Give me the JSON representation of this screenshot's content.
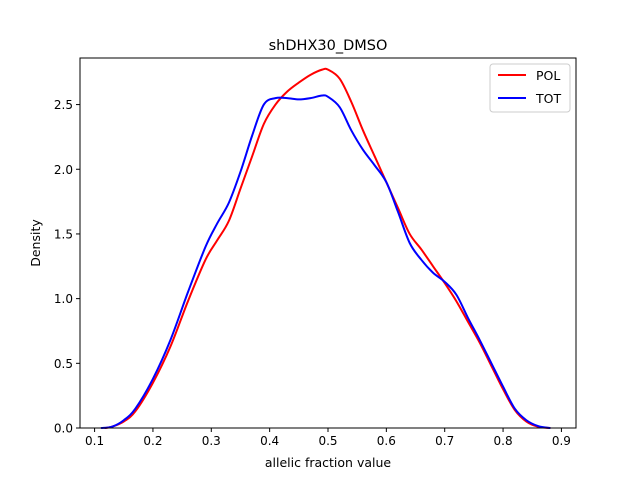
{
  "chart_data": {
    "type": "line",
    "title": "shDHX30_DMSO",
    "xlabel": "allelic fraction value",
    "ylabel": "Density",
    "xlim": [
      0.075,
      0.925
    ],
    "ylim": [
      0.0,
      2.86
    ],
    "xticks": [
      0.1,
      0.2,
      0.3,
      0.4,
      0.5,
      0.6,
      0.7,
      0.8,
      0.9
    ],
    "xtick_labels": [
      "0.1",
      "0.2",
      "0.3",
      "0.4",
      "0.5",
      "0.6",
      "0.7",
      "0.8",
      "0.9"
    ],
    "yticks": [
      0.0,
      0.5,
      1.0,
      1.5,
      2.0,
      2.5
    ],
    "ytick_labels": [
      "0.0",
      "0.5",
      "1.0",
      "1.5",
      "2.0",
      "2.5"
    ],
    "grid": false,
    "legend_position": "top-right",
    "series": [
      {
        "name": "POL",
        "color": "#ff0000",
        "x": [
          0.118,
          0.13,
          0.15,
          0.17,
          0.2,
          0.23,
          0.26,
          0.29,
          0.31,
          0.33,
          0.35,
          0.37,
          0.39,
          0.41,
          0.43,
          0.45,
          0.47,
          0.49,
          0.5,
          0.52,
          0.54,
          0.56,
          0.58,
          0.6,
          0.62,
          0.64,
          0.66,
          0.68,
          0.7,
          0.72,
          0.74,
          0.76,
          0.78,
          0.8,
          0.82,
          0.84,
          0.86,
          0.88
        ],
        "y": [
          0.0,
          0.01,
          0.05,
          0.13,
          0.35,
          0.63,
          0.98,
          1.3,
          1.45,
          1.6,
          1.85,
          2.1,
          2.35,
          2.5,
          2.6,
          2.67,
          2.73,
          2.77,
          2.77,
          2.7,
          2.52,
          2.3,
          2.1,
          1.9,
          1.7,
          1.5,
          1.38,
          1.25,
          1.12,
          0.98,
          0.82,
          0.66,
          0.48,
          0.3,
          0.14,
          0.05,
          0.01,
          0.0
        ]
      },
      {
        "name": "TOT",
        "color": "#0000ff",
        "x": [
          0.112,
          0.13,
          0.15,
          0.17,
          0.2,
          0.23,
          0.26,
          0.29,
          0.31,
          0.33,
          0.35,
          0.37,
          0.39,
          0.41,
          0.43,
          0.45,
          0.47,
          0.49,
          0.5,
          0.52,
          0.54,
          0.56,
          0.58,
          0.6,
          0.62,
          0.64,
          0.66,
          0.68,
          0.7,
          0.72,
          0.74,
          0.76,
          0.78,
          0.8,
          0.82,
          0.84,
          0.86,
          0.88
        ],
        "y": [
          0.0,
          0.01,
          0.06,
          0.15,
          0.38,
          0.68,
          1.05,
          1.4,
          1.58,
          1.74,
          1.98,
          2.26,
          2.5,
          2.55,
          2.55,
          2.54,
          2.55,
          2.57,
          2.56,
          2.48,
          2.3,
          2.15,
          2.03,
          1.9,
          1.67,
          1.43,
          1.3,
          1.2,
          1.13,
          1.03,
          0.85,
          0.68,
          0.5,
          0.32,
          0.15,
          0.06,
          0.015,
          0.0
        ]
      }
    ]
  }
}
